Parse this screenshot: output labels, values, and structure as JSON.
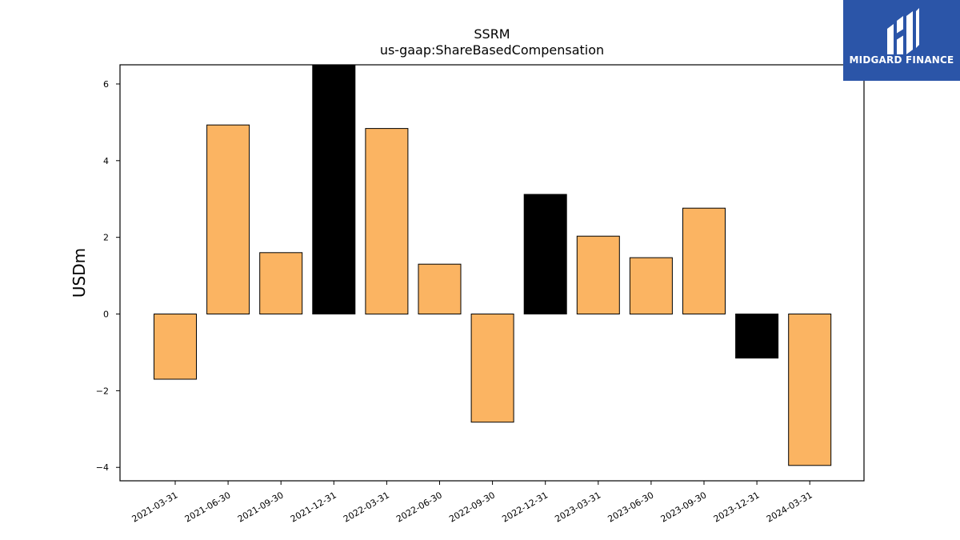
{
  "chart_data": {
    "type": "bar",
    "title": "SSRM",
    "subtitle": "us-gaap:ShareBasedCompensation",
    "xlabel": "",
    "ylabel": "USDm",
    "ylim": [
      -4.35,
      6.5
    ],
    "yticks": [
      -4,
      -2,
      0,
      2,
      4,
      6
    ],
    "ytick_labels": [
      "−4",
      "−2",
      "0",
      "2",
      "4",
      "6"
    ],
    "categories": [
      "2021-03-31",
      "2021-06-30",
      "2021-09-30",
      "2021-12-31",
      "2022-03-31",
      "2022-06-30",
      "2022-09-30",
      "2022-12-31",
      "2023-03-31",
      "2023-06-30",
      "2023-09-30",
      "2023-12-31",
      "2024-03-31"
    ],
    "values": [
      -1.7,
      4.93,
      1.6,
      6.5,
      4.84,
      1.3,
      -2.82,
      3.12,
      2.03,
      1.47,
      2.76,
      -1.15,
      -3.95
    ],
    "bar_colors": [
      "#fbb462",
      "#fbb462",
      "#fbb462",
      "#000000",
      "#fbb462",
      "#fbb462",
      "#fbb462",
      "#000000",
      "#fbb462",
      "#fbb462",
      "#fbb462",
      "#000000",
      "#fbb462"
    ],
    "grid": false,
    "legend": "none"
  },
  "logo": {
    "text": "MIDGARD FINANCE",
    "background": "#2b55a8"
  }
}
